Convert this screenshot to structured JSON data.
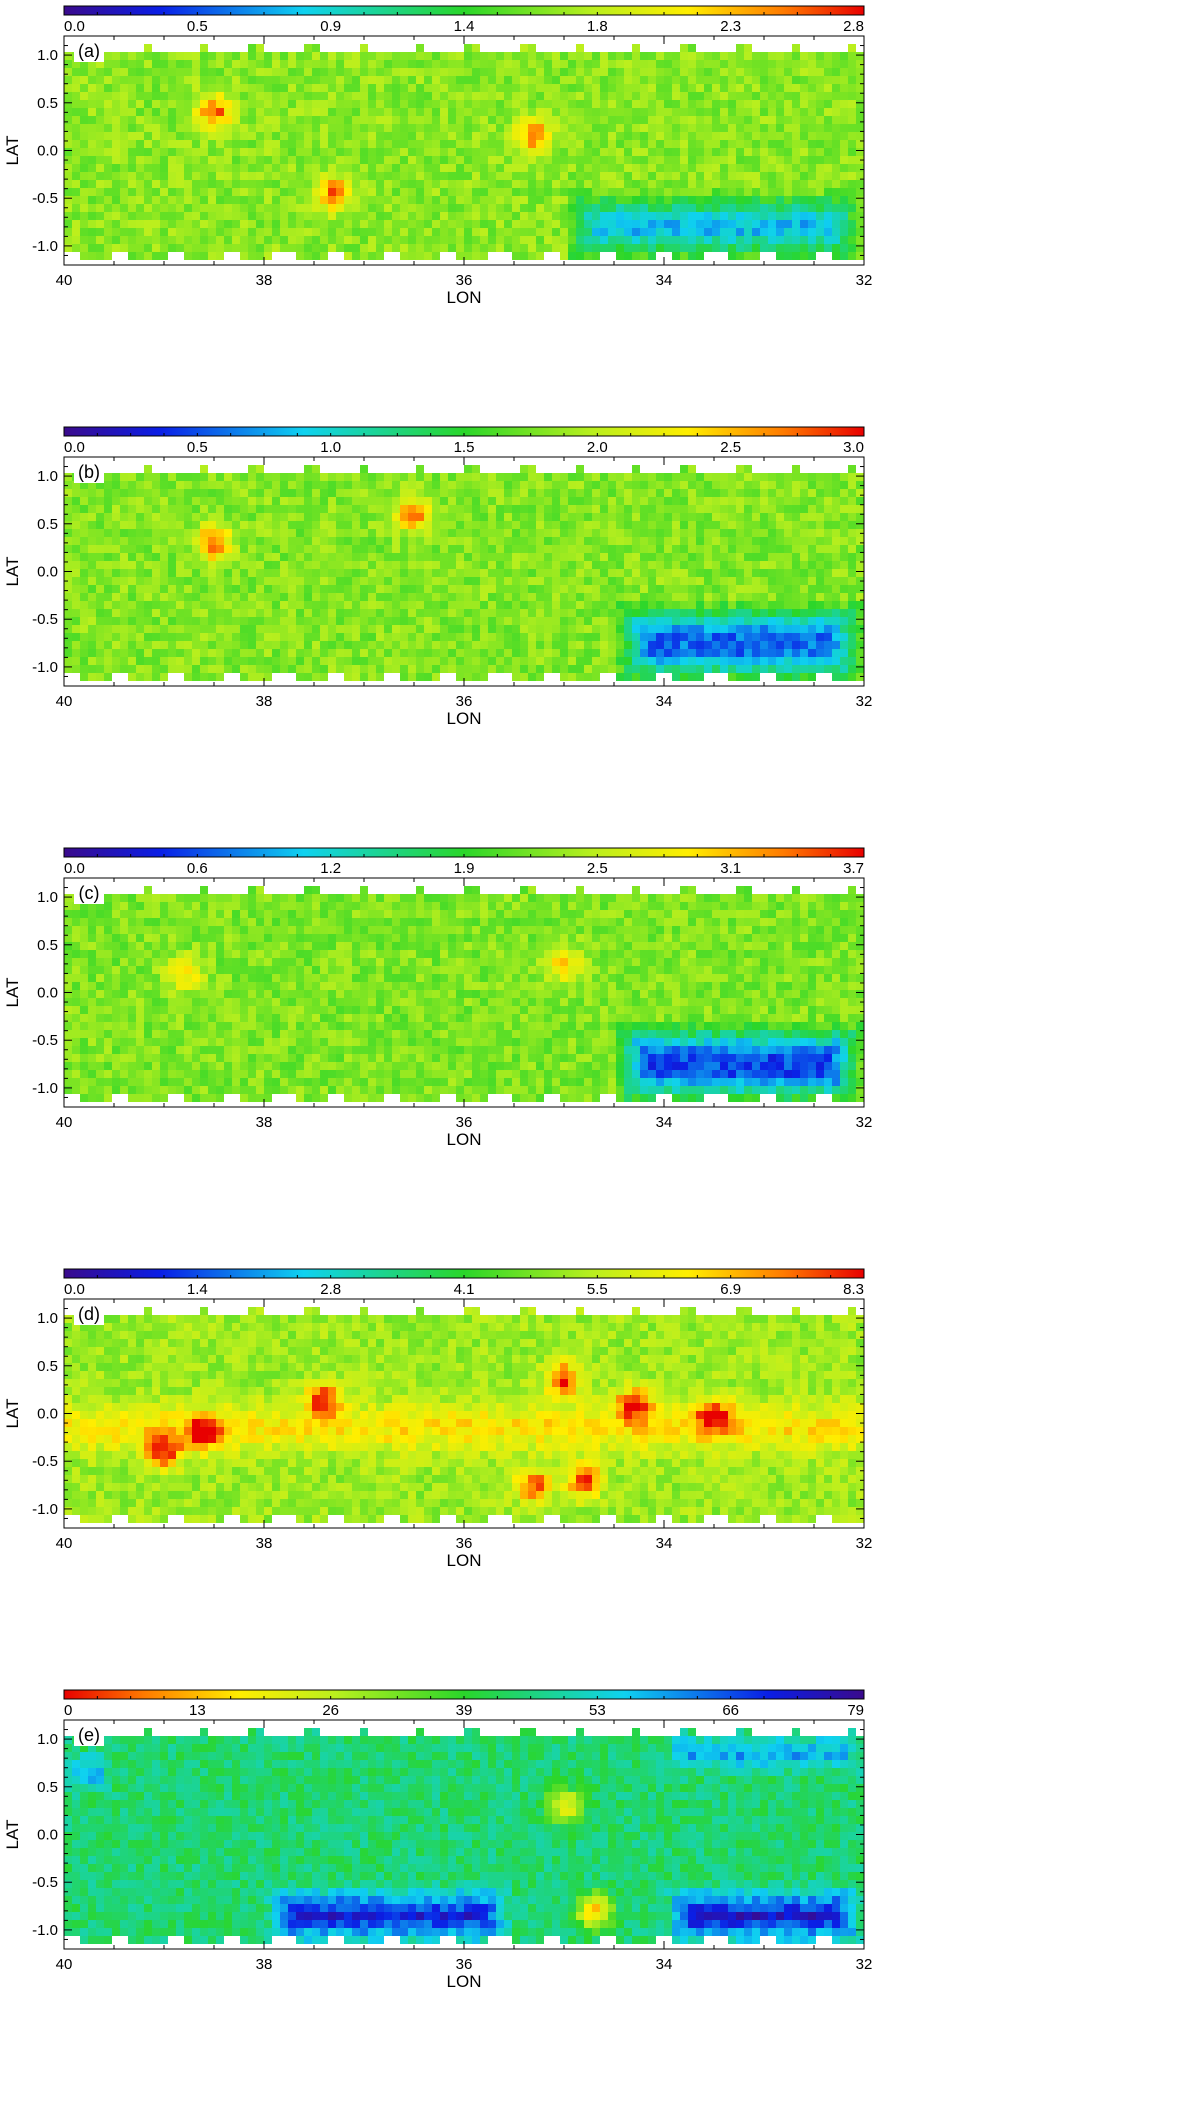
{
  "chart_data": [
    {
      "type": "heatmap",
      "panel_label": "(a)",
      "colormap": "rainbow",
      "colorbar_ticks": [
        "0.0",
        "0.5",
        "0.9",
        "1.4",
        "1.8",
        "2.3",
        "2.8"
      ],
      "colorbar_range": [
        0.0,
        2.8
      ],
      "xlabel": "LON",
      "ylabel": "LAT",
      "xlim": [
        40,
        32
      ],
      "ylim": [
        -1.2,
        1.2
      ],
      "xticks": [
        "40",
        "38",
        "36",
        "34",
        "32"
      ],
      "yticks": [
        "1.0",
        "0.5",
        "0.0",
        "-0.5",
        "-1.0"
      ],
      "description_of_field": {
        "typical_value": 1.7,
        "low_region": {
          "lon_range": [
            35,
            32
          ],
          "lat_range": [
            -1.2,
            -0.4
          ],
          "value": 0.8
        },
        "bright_spots": [
          {
            "lon": 38.5,
            "lat": 0.4,
            "value": 2.6
          },
          {
            "lon": 37.3,
            "lat": -0.45,
            "value": 2.6
          },
          {
            "lon": 35.3,
            "lat": 0.15,
            "value": 2.6
          }
        ]
      }
    },
    {
      "type": "heatmap",
      "panel_label": "(b)",
      "colormap": "rainbow",
      "colorbar_ticks": [
        "0.0",
        "0.5",
        "1.0",
        "1.5",
        "2.0",
        "2.5",
        "3.0"
      ],
      "colorbar_range": [
        0.0,
        3.0
      ],
      "xlabel": "LON",
      "ylabel": "LAT",
      "xlim": [
        40,
        32
      ],
      "ylim": [
        -1.2,
        1.2
      ],
      "xticks": [
        "40",
        "38",
        "36",
        "34",
        "32"
      ],
      "yticks": [
        "1.0",
        "0.5",
        "0.0",
        "-0.5",
        "-1.0"
      ],
      "description_of_field": {
        "typical_value": 1.8,
        "low_region": {
          "lon_range": [
            34.5,
            32
          ],
          "lat_range": [
            -1.2,
            -0.3
          ],
          "value": 0.6
        },
        "bright_spots": [
          {
            "lon": 38.5,
            "lat": 0.3,
            "value": 2.8
          },
          {
            "lon": 36.5,
            "lat": 0.6,
            "value": 2.8
          }
        ]
      }
    },
    {
      "type": "heatmap",
      "panel_label": "(c)",
      "colormap": "rainbow",
      "colorbar_ticks": [
        "0.0",
        "0.6",
        "1.2",
        "1.9",
        "2.5",
        "3.1",
        "3.7"
      ],
      "colorbar_range": [
        0.0,
        3.7
      ],
      "xlabel": "LON",
      "ylabel": "LAT",
      "xlim": [
        40,
        32
      ],
      "ylim": [
        -1.2,
        1.2
      ],
      "xticks": [
        "40",
        "38",
        "36",
        "34",
        "32"
      ],
      "yticks": [
        "1.0",
        "0.5",
        "0.0",
        "-0.5",
        "-1.0"
      ],
      "description_of_field": {
        "typical_value": 2.2,
        "low_region": {
          "lon_range": [
            34.5,
            32
          ],
          "lat_range": [
            -1.2,
            -0.3
          ],
          "value": 0.6
        },
        "bright_spots": [
          {
            "lon": 38.8,
            "lat": 0.2,
            "value": 3.0
          },
          {
            "lon": 35.0,
            "lat": 0.3,
            "value": 3.0
          }
        ]
      }
    },
    {
      "type": "heatmap",
      "panel_label": "(d)",
      "colormap": "rainbow",
      "colorbar_ticks": [
        "0.0",
        "1.4",
        "2.8",
        "4.1",
        "5.5",
        "6.9",
        "8.3"
      ],
      "colorbar_range": [
        0.0,
        8.3
      ],
      "xlabel": "LON",
      "ylabel": "LAT",
      "xlim": [
        40,
        32
      ],
      "ylim": [
        -1.2,
        1.2
      ],
      "xticks": [
        "40",
        "38",
        "36",
        "34",
        "32"
      ],
      "yticks": [
        "1.0",
        "0.5",
        "0.0",
        "-0.5",
        "-1.0"
      ],
      "description_of_field": {
        "typical_value": 5.2,
        "band": {
          "lat_center": -0.15,
          "value": 6.5
        },
        "bright_spots": [
          {
            "lon": 39.0,
            "lat": -0.4,
            "value": 8.0
          },
          {
            "lon": 38.6,
            "lat": -0.2,
            "value": 7.8
          },
          {
            "lon": 37.4,
            "lat": 0.15,
            "value": 8.0
          },
          {
            "lon": 35.0,
            "lat": 0.35,
            "value": 8.2
          },
          {
            "lon": 34.3,
            "lat": 0.1,
            "value": 8.0
          },
          {
            "lon": 34.8,
            "lat": -0.7,
            "value": 8.0
          },
          {
            "lon": 35.3,
            "lat": -0.75,
            "value": 7.8
          },
          {
            "lon": 33.5,
            "lat": -0.02,
            "value": 7.8
          }
        ]
      }
    },
    {
      "type": "heatmap",
      "panel_label": "(e)",
      "colormap": "reversed-rainbow",
      "colorbar_ticks": [
        "0",
        "13",
        "26",
        "39",
        "53",
        "66",
        "79"
      ],
      "colorbar_range": [
        0,
        79
      ],
      "xlabel": "LON",
      "ylabel": "LAT",
      "xlim": [
        40,
        32
      ],
      "ylim": [
        -1.2,
        1.2
      ],
      "xticks": [
        "40",
        "38",
        "36",
        "34",
        "32"
      ],
      "yticks": [
        "1.0",
        "0.5",
        "0.0",
        "-0.5",
        "-1.0"
      ],
      "description_of_field": {
        "typical_value": 45,
        "high_regions": [
          {
            "lon_range": [
              38.0,
              35.5
            ],
            "lat_range": [
              -1.2,
              -0.5
            ],
            "value": 72
          },
          {
            "lon_range": [
              34.0,
              32.0
            ],
            "lat_range": [
              -1.2,
              -0.5
            ],
            "value": 74
          },
          {
            "lon_range": [
              40.0,
              39.5
            ],
            "lat_range": [
              0.4,
              0.9
            ],
            "value": 68
          },
          {
            "lon_range": [
              34.0,
              32.0
            ],
            "lat_range": [
              0.6,
              1.1
            ],
            "value": 66
          }
        ],
        "low_regions": [
          {
            "lon": 35.0,
            "lat": 0.3,
            "value": 18
          },
          {
            "lon": 34.7,
            "lat": -0.8,
            "value": 12
          }
        ]
      }
    }
  ]
}
